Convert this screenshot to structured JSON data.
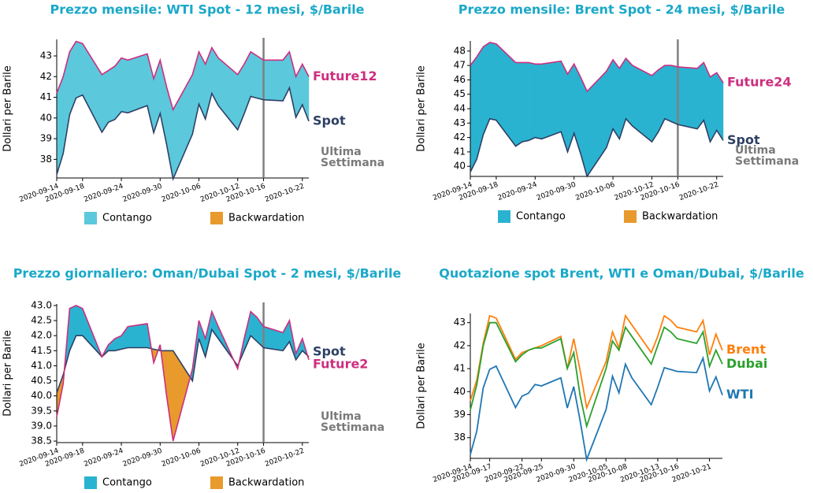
{
  "chart_data": [
    {
      "type": "area",
      "title": "Prezzo mensile: WTI Spot - 12 mesi, $/Barile",
      "ylabel": "Dollari per Barile",
      "x": [
        "2020-09-14",
        "2020-09-15",
        "2020-09-16",
        "2020-09-17",
        "2020-09-18",
        "2020-09-21",
        "2020-09-22",
        "2020-09-23",
        "2020-09-24",
        "2020-09-25",
        "2020-09-28",
        "2020-09-29",
        "2020-09-30",
        "2020-10-01",
        "2020-10-02",
        "2020-10-05",
        "2020-10-06",
        "2020-10-07",
        "2020-10-08",
        "2020-10-09",
        "2020-10-12",
        "2020-10-13",
        "2020-10-14",
        "2020-10-15",
        "2020-10-16",
        "2020-10-19",
        "2020-10-20",
        "2020-10-21",
        "2020-10-22",
        "2020-10-23"
      ],
      "series": [
        {
          "name": "Spot",
          "color": "#2e4064",
          "values": [
            37.26,
            38.28,
            40.16,
            40.97,
            41.11,
            39.31,
            39.8,
            39.93,
            40.31,
            40.25,
            40.6,
            39.29,
            40.22,
            38.72,
            37.05,
            39.22,
            40.67,
            39.95,
            41.19,
            40.6,
            39.43,
            40.2,
            41.04,
            40.96,
            40.88,
            40.83,
            41.46,
            40.03,
            40.64,
            39.85
          ]
        },
        {
          "name": "Future12",
          "color": "#cc2f7f",
          "values": [
            41.2,
            42.0,
            43.2,
            43.7,
            43.6,
            42.1,
            42.3,
            42.5,
            42.9,
            42.8,
            43.1,
            41.9,
            42.8,
            41.5,
            40.4,
            42.1,
            43.2,
            42.6,
            43.4,
            42.9,
            42.1,
            42.6,
            43.2,
            43.0,
            42.8,
            42.8,
            43.2,
            42.0,
            42.6,
            42.0
          ]
        }
      ],
      "xlim": [
        "2020-09-14",
        "2020-10-23"
      ],
      "xticks": [
        "2020-09-14",
        "2020-09-18",
        "2020-09-24",
        "2020-09-30",
        "2020-10-06",
        "2020-10-12",
        "2020-10-16",
        "2020-10-22"
      ],
      "ylim": [
        37.1,
        43.8
      ],
      "yticks": [
        38,
        39,
        40,
        41,
        42,
        43
      ],
      "marker_date": "2020-10-16",
      "annotation_lines": [
        "Ultima",
        "Settimana"
      ],
      "legend": [
        "Contango",
        "Backwardation"
      ],
      "contango_color": "#5bc8dc",
      "backwardation_color": "#e89a2c"
    },
    {
      "type": "area",
      "title": "Prezzo mensile: Brent Spot - 24 mesi, $/Barile",
      "ylabel": "Dollari per Barile",
      "x": [
        "2020-09-14",
        "2020-09-15",
        "2020-09-16",
        "2020-09-17",
        "2020-09-18",
        "2020-09-21",
        "2020-09-22",
        "2020-09-23",
        "2020-09-24",
        "2020-09-25",
        "2020-09-28",
        "2020-09-29",
        "2020-09-30",
        "2020-10-01",
        "2020-10-02",
        "2020-10-05",
        "2020-10-06",
        "2020-10-07",
        "2020-10-08",
        "2020-10-09",
        "2020-10-12",
        "2020-10-13",
        "2020-10-14",
        "2020-10-15",
        "2020-10-16",
        "2020-10-19",
        "2020-10-20",
        "2020-10-21",
        "2020-10-22",
        "2020-10-23"
      ],
      "series": [
        {
          "name": "Spot",
          "color": "#2e4064",
          "values": [
            39.6,
            40.5,
            42.2,
            43.3,
            43.2,
            41.4,
            41.7,
            41.8,
            42.0,
            41.9,
            42.4,
            41.0,
            42.3,
            40.9,
            39.3,
            41.3,
            42.6,
            41.9,
            43.3,
            42.8,
            41.7,
            42.4,
            43.3,
            43.1,
            42.9,
            42.6,
            43.2,
            41.7,
            42.5,
            41.8
          ]
        },
        {
          "name": "Future24",
          "color": "#cc2f7f",
          "values": [
            47.0,
            47.6,
            48.3,
            48.6,
            48.5,
            47.2,
            47.2,
            47.2,
            47.1,
            47.1,
            47.3,
            46.4,
            47.1,
            46.2,
            45.2,
            46.6,
            47.4,
            46.8,
            47.5,
            47.0,
            46.3,
            46.7,
            47.0,
            47.0,
            46.9,
            46.8,
            47.2,
            46.2,
            46.5,
            45.8
          ]
        }
      ],
      "xlim": [
        "2020-09-14",
        "2020-10-23"
      ],
      "xticks": [
        "2020-09-14",
        "2020-09-18",
        "2020-09-24",
        "2020-09-30",
        "2020-10-06",
        "2020-10-12",
        "2020-10-16",
        "2020-10-22"
      ],
      "ylim": [
        39.3,
        48.7
      ],
      "yticks": [
        40,
        41,
        42,
        43,
        44,
        45,
        46,
        47,
        48
      ],
      "marker_date": "2020-10-16",
      "annotation_lines": [
        "Ultima",
        "Settimana"
      ],
      "legend": [
        "Contango",
        "Backwardation"
      ],
      "contango_color": "#2ab3d1",
      "backwardation_color": "#e89a2c"
    },
    {
      "type": "area",
      "title": "Prezzo giornaliero: Oman/Dubai Spot - 2 mesi, $/Barile",
      "ylabel": "Dollari per Barile",
      "x": [
        "2020-09-14",
        "2020-09-15",
        "2020-09-16",
        "2020-09-17",
        "2020-09-18",
        "2020-09-21",
        "2020-09-22",
        "2020-09-23",
        "2020-09-24",
        "2020-09-25",
        "2020-09-28",
        "2020-09-29",
        "2020-09-30",
        "2020-10-01",
        "2020-10-02",
        "2020-10-05",
        "2020-10-06",
        "2020-10-07",
        "2020-10-08",
        "2020-10-09",
        "2020-10-12",
        "2020-10-13",
        "2020-10-14",
        "2020-10-15",
        "2020-10-16",
        "2020-10-19",
        "2020-10-20",
        "2020-10-21",
        "2020-10-22",
        "2020-10-23"
      ],
      "series": [
        {
          "name": "Spot",
          "color": "#2e4064",
          "values": [
            40.1,
            40.7,
            41.5,
            42.0,
            42.0,
            41.3,
            41.5,
            41.5,
            41.55,
            41.6,
            41.6,
            41.55,
            41.5,
            41.5,
            41.5,
            40.5,
            41.9,
            41.3,
            42.2,
            41.9,
            41.0,
            41.5,
            42.0,
            41.8,
            41.6,
            41.5,
            41.8,
            41.2,
            41.5,
            41.3
          ]
        },
        {
          "name": "Future2",
          "color": "#cc2f7f",
          "values": [
            39.3,
            40.4,
            42.9,
            43.0,
            42.9,
            41.3,
            41.7,
            41.9,
            42.0,
            42.3,
            42.4,
            41.1,
            41.7,
            40.0,
            38.5,
            40.9,
            42.5,
            41.9,
            42.8,
            42.3,
            40.9,
            41.9,
            42.8,
            42.6,
            42.3,
            42.1,
            42.5,
            41.4,
            41.9,
            41.2
          ]
        }
      ],
      "xlim": [
        "2020-09-14",
        "2020-10-23"
      ],
      "xticks": [
        "2020-09-14",
        "2020-09-18",
        "2020-09-24",
        "2020-09-30",
        "2020-10-06",
        "2020-10-12",
        "2020-10-16",
        "2020-10-22"
      ],
      "ylim": [
        38.45,
        43.05
      ],
      "yticks": [
        38.5,
        {
          "value": 39,
          "label": "39.0"
        },
        39.5,
        {
          "value": 40,
          "label": "40.0"
        },
        40.5,
        {
          "value": 41,
          "label": "41.0"
        },
        41.5,
        {
          "value": 42,
          "label": "42.0"
        },
        42.5,
        {
          "value": 43,
          "label": "43.0"
        }
      ],
      "marker_date": "2020-10-16",
      "annotation_lines": [
        "Ultima",
        "Settimana"
      ],
      "legend": [
        "Contango",
        "Backwardation"
      ],
      "contango_color": "#2ab3d1",
      "backwardation_color": "#e89a2c"
    },
    {
      "type": "line",
      "title": "Quotazione spot Brent, WTI e Oman/Dubai, $/Barile",
      "ylabel": "Dollari per Barile",
      "x": [
        "2020-09-14",
        "2020-09-15",
        "2020-09-16",
        "2020-09-17",
        "2020-09-18",
        "2020-09-21",
        "2020-09-22",
        "2020-09-23",
        "2020-09-24",
        "2020-09-25",
        "2020-09-28",
        "2020-09-29",
        "2020-09-30",
        "2020-10-01",
        "2020-10-02",
        "2020-10-05",
        "2020-10-06",
        "2020-10-07",
        "2020-10-08",
        "2020-10-09",
        "2020-10-12",
        "2020-10-13",
        "2020-10-14",
        "2020-10-15",
        "2020-10-16",
        "2020-10-19",
        "2020-10-20",
        "2020-10-21",
        "2020-10-22",
        "2020-10-23"
      ],
      "series": [
        {
          "name": "Brent",
          "color": "#ff7f0e",
          "values": [
            39.6,
            40.5,
            42.1,
            43.3,
            43.2,
            41.4,
            41.7,
            41.8,
            41.9,
            42.0,
            42.4,
            41.0,
            42.3,
            40.9,
            39.3,
            41.3,
            42.6,
            41.9,
            43.3,
            42.9,
            41.7,
            42.4,
            43.3,
            43.1,
            42.8,
            42.6,
            43.1,
            41.6,
            42.5,
            41.8
          ]
        },
        {
          "name": "Dubai",
          "color": "#2ca02c",
          "values": [
            39.2,
            40.3,
            42.0,
            43.0,
            43.0,
            41.3,
            41.6,
            41.8,
            41.9,
            41.9,
            42.3,
            41.0,
            41.7,
            39.8,
            38.5,
            41.0,
            42.2,
            41.8,
            42.8,
            42.4,
            41.2,
            42.0,
            42.8,
            42.6,
            42.3,
            42.1,
            42.6,
            41.1,
            41.8,
            41.2
          ]
        },
        {
          "name": "WTI",
          "color": "#1f77b4",
          "values": [
            37.26,
            38.28,
            40.16,
            40.97,
            41.11,
            39.31,
            39.8,
            39.93,
            40.31,
            40.25,
            40.6,
            39.29,
            40.22,
            38.72,
            37.05,
            39.22,
            40.67,
            39.95,
            41.19,
            40.6,
            39.43,
            40.2,
            41.04,
            40.96,
            40.88,
            40.83,
            41.46,
            40.03,
            40.64,
            39.85
          ]
        }
      ],
      "xlim": [
        "2020-09-14",
        "2020-10-23"
      ],
      "xticks": [
        "2020-09-14",
        "2020-09-17",
        "2020-09-22",
        "2020-09-25",
        "2020-09-30",
        "2020-10-05",
        "2020-10-08",
        "2020-10-13",
        "2020-10-16",
        "2020-10-21"
      ],
      "ylim": [
        37.1,
        43.4
      ],
      "yticks": [
        38,
        39,
        40,
        41,
        42,
        43
      ]
    }
  ]
}
